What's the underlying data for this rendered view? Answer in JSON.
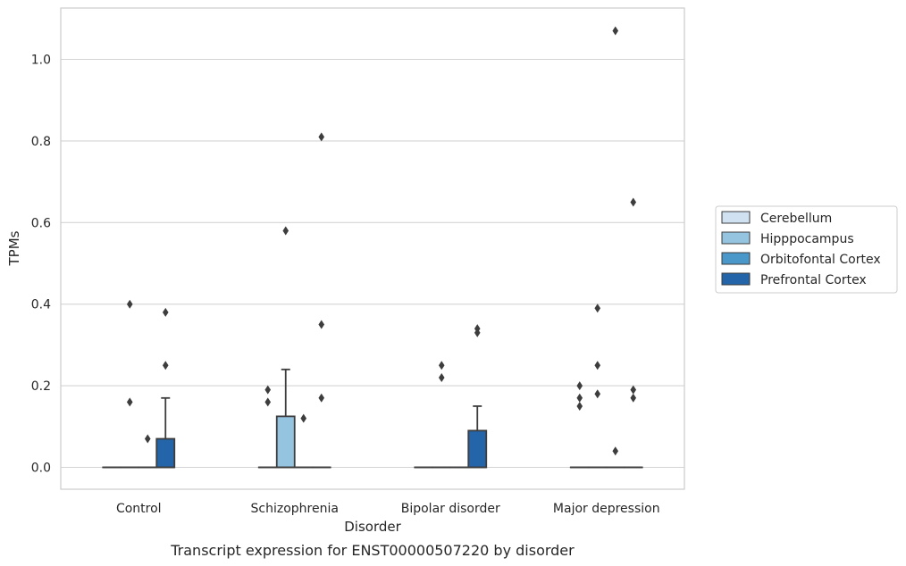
{
  "caption": "Transcript expression for ENST00000507220 by disorder",
  "chart_data": {
    "type": "box",
    "categories": [
      "Control",
      "Schizophrenia",
      "Bipolar disorder",
      "Major depression"
    ],
    "xlabel": "Disorder",
    "ylabel": "TPMs",
    "ylim": [
      -0.05,
      1.13
    ],
    "yticks": [
      "0.0",
      "0.2",
      "0.4",
      "0.6",
      "0.8",
      "1.0"
    ],
    "grid": true,
    "legend_placement": "right",
    "series": [
      {
        "name": "Cerebellum",
        "color": "#d0e1f2",
        "boxes": [
          {
            "q1": 0,
            "median": 0,
            "q3": 0,
            "whisker_low": 0,
            "whisker_high": 0,
            "outliers": []
          },
          {
            "q1": 0,
            "median": 0,
            "q3": 0,
            "whisker_low": 0,
            "whisker_high": 0,
            "outliers": [
              0.16,
              0.19
            ]
          },
          {
            "q1": 0,
            "median": 0,
            "q3": 0,
            "whisker_low": 0,
            "whisker_high": 0,
            "outliers": []
          },
          {
            "q1": 0,
            "median": 0,
            "q3": 0,
            "whisker_low": 0,
            "whisker_high": 0,
            "outliers": [
              0.15,
              0.17,
              0.2
            ]
          }
        ]
      },
      {
        "name": "Hipppocampus",
        "color": "#94c4df",
        "boxes": [
          {
            "q1": 0,
            "median": 0,
            "q3": 0,
            "whisker_low": 0,
            "whisker_high": 0,
            "outliers": [
              0.16,
              0.4
            ]
          },
          {
            "q1": 0,
            "median": 0,
            "q3": 0.125,
            "whisker_low": 0,
            "whisker_high": 0.24,
            "outliers": [
              0.58
            ]
          },
          {
            "q1": 0,
            "median": 0,
            "q3": 0,
            "whisker_low": 0,
            "whisker_high": 0,
            "outliers": [
              0.22,
              0.25
            ]
          },
          {
            "q1": 0,
            "median": 0,
            "q3": 0,
            "whisker_low": 0,
            "whisker_high": 0,
            "outliers": [
              0.18,
              0.25,
              0.39
            ]
          }
        ]
      },
      {
        "name": "Orbitofontal Cortex",
        "color": "#4a98c9",
        "boxes": [
          {
            "q1": 0,
            "median": 0,
            "q3": 0,
            "whisker_low": 0,
            "whisker_high": 0,
            "outliers": [
              0.07
            ]
          },
          {
            "q1": 0,
            "median": 0,
            "q3": 0,
            "whisker_low": 0,
            "whisker_high": 0,
            "outliers": [
              0.12
            ]
          },
          {
            "q1": 0,
            "median": 0,
            "q3": 0,
            "whisker_low": 0,
            "whisker_high": 0,
            "outliers": []
          },
          {
            "q1": 0,
            "median": 0,
            "q3": 0,
            "whisker_low": 0,
            "whisker_high": 0,
            "outliers": [
              0.04,
              1.07
            ]
          }
        ]
      },
      {
        "name": "Prefrontal Cortex",
        "color": "#2464a8",
        "boxes": [
          {
            "q1": 0,
            "median": 0,
            "q3": 0.07,
            "whisker_low": 0,
            "whisker_high": 0.17,
            "outliers": [
              0.25,
              0.38
            ]
          },
          {
            "q1": 0,
            "median": 0,
            "q3": 0,
            "whisker_low": 0,
            "whisker_high": 0,
            "outliers": [
              0.17,
              0.35,
              0.81
            ]
          },
          {
            "q1": 0,
            "median": 0,
            "q3": 0.09,
            "whisker_low": 0,
            "whisker_high": 0.15,
            "outliers": [
              0.33,
              0.34
            ]
          },
          {
            "q1": 0,
            "median": 0,
            "q3": 0,
            "whisker_low": 0,
            "whisker_high": 0,
            "outliers": [
              0.17,
              0.19,
              0.65
            ]
          }
        ]
      }
    ]
  }
}
